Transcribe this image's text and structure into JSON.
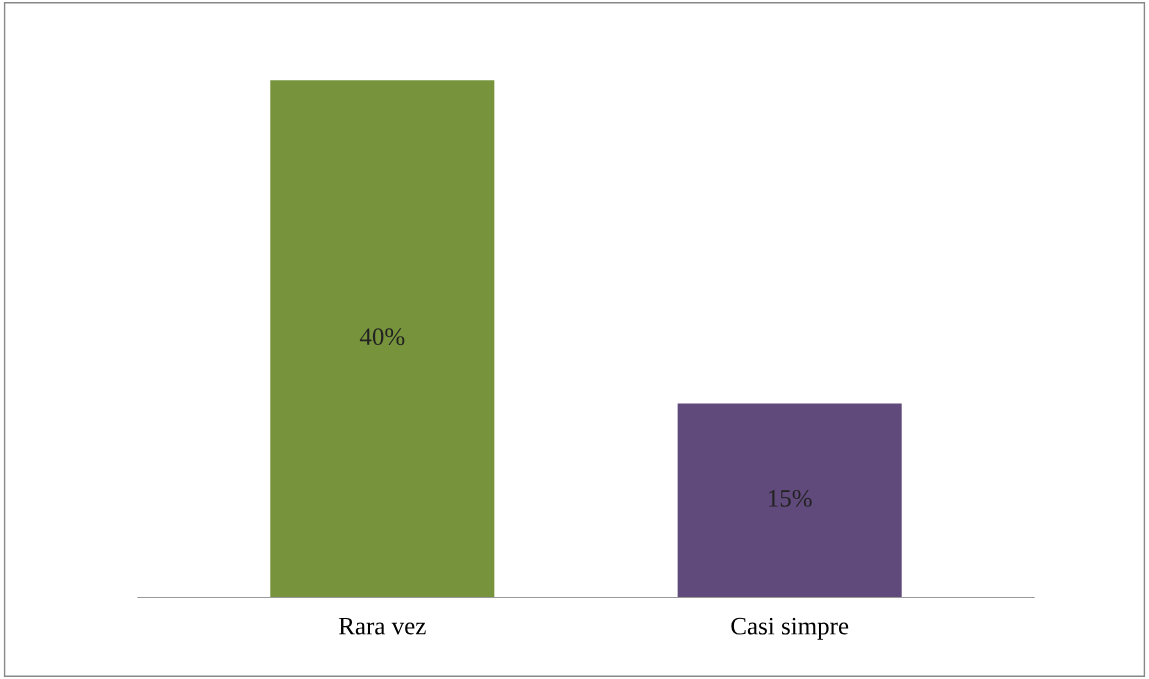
{
  "chart_data": {
    "type": "bar",
    "categories": [
      "Rara vez",
      "Casi simpre"
    ],
    "values": [
      40,
      15
    ],
    "colors": [
      "#77933c",
      "#604a7b"
    ],
    "value_labels": [
      "40%",
      "15%"
    ],
    "grid": false,
    "legend": false
  }
}
